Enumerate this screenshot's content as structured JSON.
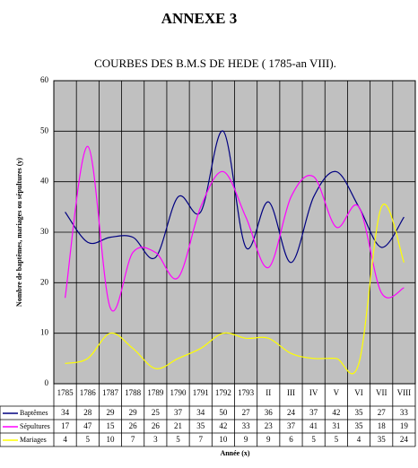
{
  "chart_data": {
    "type": "line",
    "title": "ANNEXE 3",
    "subtitle": "COURBES DES B.M.S DE HEDE ( 1785-an VIII).",
    "y_label": "Nombre de baptêmes, mariages ou sépultures (y)",
    "x_label": "Année (x)",
    "categories": [
      "1785",
      "1786",
      "1787",
      "1788",
      "1789",
      "1790",
      "1791",
      "1792",
      "1793",
      "II",
      "III",
      "IV",
      "V",
      "VI",
      "VII",
      "VIII"
    ],
    "series": [
      {
        "name": "Baptêmes",
        "color": "#000080",
        "values": [
          34,
          28,
          29,
          29,
          25,
          37,
          34,
          50,
          27,
          36,
          24,
          37,
          42,
          35,
          27,
          33
        ]
      },
      {
        "name": "Sépultures",
        "color": "#ff00ff",
        "values": [
          17,
          47,
          15,
          26,
          26,
          21,
          35,
          42,
          33,
          23,
          37,
          41,
          31,
          35,
          18,
          19
        ]
      },
      {
        "name": "Mariages",
        "color": "#ffff00",
        "values": [
          4,
          5,
          10,
          7,
          3,
          5,
          7,
          10,
          9,
          9,
          6,
          5,
          5,
          4,
          35,
          24
        ]
      }
    ],
    "ylim": [
      0,
      60
    ],
    "yticks": [
      0,
      10,
      20,
      30,
      40,
      50,
      60
    ],
    "grid": true,
    "smooth": true
  }
}
